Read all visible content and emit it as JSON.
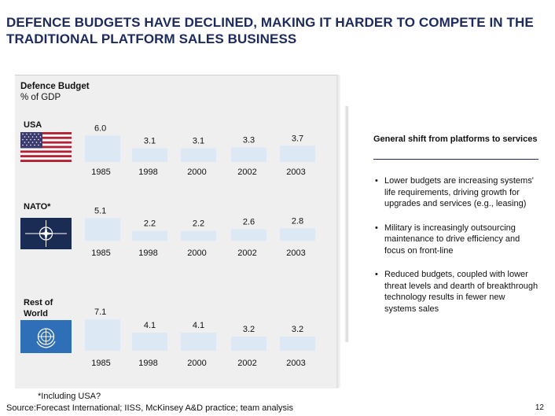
{
  "title": "DEFENCE BUDGETS HAVE DECLINED, MAKING IT HARDER TO COMPETE IN THE TRADITIONAL PLATFORM SALES BUSINESS",
  "chart_title": "Defence Budget",
  "chart_subtitle": "% of GDP",
  "chart_data": [
    {
      "type": "bar",
      "region": "USA",
      "categories": [
        "1985",
        "1998",
        "2000",
        "2002",
        "2003"
      ],
      "values": [
        6.0,
        3.1,
        3.1,
        3.3,
        3.7
      ],
      "labels": [
        "6.0",
        "3.1",
        "3.1",
        "3.3",
        "3.7"
      ],
      "ylabel": "% of GDP"
    },
    {
      "type": "bar",
      "region": "NATO*",
      "categories": [
        "1985",
        "1998",
        "2000",
        "2002",
        "2003"
      ],
      "values": [
        5.1,
        2.2,
        2.2,
        2.6,
        2.8
      ],
      "labels": [
        "5.1",
        "2.2",
        "2.2",
        "2.6",
        "2.8"
      ],
      "ylabel": "% of GDP"
    },
    {
      "type": "bar",
      "region": "Rest of World",
      "categories": [
        "1985",
        "1998",
        "2000",
        "2002",
        "2003"
      ],
      "values": [
        7.1,
        4.1,
        4.1,
        3.2,
        3.2
      ],
      "labels": [
        "7.1",
        "4.1",
        "4.1",
        "3.2",
        "3.2"
      ],
      "ylabel": "% of GDP"
    }
  ],
  "sidebar": {
    "title": "General shift from platforms to services",
    "bullets": [
      "Lower budgets are increasing systems' life requirements, driving growth for upgrades and services (e.g., leasing)",
      "Military is increasingly outsourcing maintenance to drive efficiency and focus on front-line",
      "Reduced budgets, coupled with lower threat levels and dearth of breakthrough technology results in fewer new systems sales"
    ]
  },
  "footnote": "*Including USA?",
  "source": "Source:Forecast International; IISS, McKinsey A&D practice; team analysis",
  "page_number": "12",
  "colors": {
    "bar": "#dde8f5",
    "title": "#1d2a5c",
    "panel": "#efefef"
  }
}
